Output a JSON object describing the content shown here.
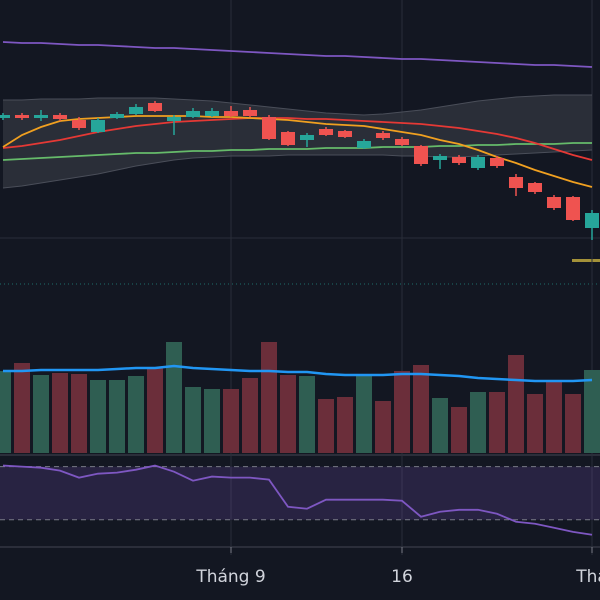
{
  "chart_data": {
    "type": "candlestick",
    "categories": [
      null,
      null,
      null,
      null,
      null,
      null,
      null,
      null,
      null,
      null,
      null,
      null,
      "Tháng 9",
      null,
      null,
      null,
      null,
      null,
      null,
      null,
      null,
      "16",
      null,
      null,
      null,
      null,
      null,
      null,
      null,
      null,
      null,
      "Thá"
    ],
    "open": [
      182,
      185,
      182,
      185,
      180,
      168,
      182,
      186,
      197,
      179,
      183,
      184,
      189,
      190,
      183,
      168,
      160,
      171,
      169,
      152,
      167,
      161,
      154,
      140,
      143,
      132,
      142,
      123,
      117,
      103,
      103,
      72
    ],
    "high": [
      187,
      187,
      190,
      187,
      183,
      182,
      188,
      196,
      199,
      185,
      192,
      192,
      194,
      193,
      185,
      169,
      167,
      173,
      170,
      161,
      169,
      163,
      155,
      146,
      145,
      145,
      144,
      126,
      118,
      105,
      104,
      90
    ],
    "low": [
      180,
      180,
      179,
      179,
      170,
      167,
      181,
      185,
      188,
      165,
      182,
      183,
      183,
      183,
      160,
      154,
      153,
      164,
      162,
      151,
      160,
      154,
      134,
      131,
      135,
      130,
      132,
      104,
      106,
      90,
      79,
      60
    ],
    "close": [
      185,
      182,
      185,
      181,
      172,
      180,
      186,
      193,
      189,
      183,
      189,
      189,
      184,
      184,
      161,
      155,
      165,
      165,
      163,
      159,
      162,
      155,
      136,
      144,
      137,
      143,
      134,
      112,
      108,
      92,
      80,
      87
    ],
    "up_color": "#26a69a",
    "down_color": "#ef5350",
    "ylim": [
      0,
      300
    ],
    "lines": [
      {
        "color": "#7e57c2",
        "values": [
          258,
          257,
          257,
          256,
          255,
          255,
          254,
          253,
          252,
          252,
          251,
          250,
          249,
          248,
          247,
          246,
          245,
          244,
          244,
          243,
          242,
          241,
          241,
          240,
          239,
          238,
          237,
          236,
          235,
          235,
          234,
          233
        ]
      },
      {
        "color": "#66bb6a",
        "values": [
          140,
          141,
          142,
          143,
          144,
          145,
          146,
          147,
          147,
          148,
          149,
          149,
          150,
          150,
          151,
          151,
          151,
          152,
          152,
          152,
          153,
          153,
          153,
          154,
          154,
          155,
          155,
          156,
          156,
          156,
          157,
          157
        ]
      },
      {
        "color": "#e53935",
        "values": [
          152,
          154,
          157,
          160,
          164,
          168,
          171,
          174,
          176,
          178,
          179,
          180,
          181,
          182,
          182,
          182,
          181,
          181,
          180,
          179,
          178,
          177,
          176,
          174,
          172,
          169,
          166,
          162,
          157,
          151,
          145,
          140
        ]
      },
      {
        "color": "#f0a020",
        "values": [
          153,
          165,
          173,
          179,
          181,
          182,
          183,
          184,
          184,
          184,
          184,
          183,
          183,
          182,
          181,
          180,
          178,
          176,
          175,
          174,
          171,
          168,
          165,
          160,
          156,
          150,
          143,
          137,
          130,
          124,
          118,
          113
        ]
      }
    ],
    "bands": {
      "color": "#3a3d47",
      "upper": [
        200,
        200,
        201,
        201,
        201,
        202,
        202,
        202,
        202,
        201,
        200,
        199,
        197,
        195,
        193,
        191,
        189,
        187,
        186,
        185,
        186,
        188,
        190,
        193,
        196,
        199,
        201,
        203,
        204,
        205,
        205,
        205
      ],
      "lower": [
        112,
        114,
        117,
        120,
        123,
        126,
        130,
        134,
        137,
        140,
        142,
        143,
        144,
        144,
        144,
        145,
        145,
        145,
        145,
        145,
        145,
        144,
        144,
        143,
        143,
        144,
        145,
        146,
        147,
        148,
        149,
        150
      ]
    },
    "volume": {
      "values": [
        82,
        90,
        78,
        80,
        79,
        73,
        73,
        77,
        85,
        111,
        66,
        64,
        64,
        75,
        111,
        78,
        77,
        54,
        56,
        77,
        52,
        82,
        88,
        55,
        46,
        61,
        61,
        98,
        59,
        73,
        59,
        83
      ],
      "ylim": [
        0,
        130
      ],
      "up_color": "#2f5e52",
      "down_color": "#6b2e3a",
      "ma": {
        "color": "#2196f3",
        "values": [
          82,
          82,
          83,
          83,
          83,
          83,
          84,
          85,
          85,
          87,
          85,
          84,
          83,
          82,
          82,
          81,
          81,
          79,
          78,
          78,
          78,
          79,
          79,
          78,
          77,
          75,
          74,
          73,
          72,
          72,
          72,
          73
        ]
      }
    },
    "rsi": {
      "values": [
        70.8,
        70,
        69.2,
        67,
        61.7,
        64.7,
        65.5,
        67.7,
        70.8,
        66.2,
        59.4,
        62.5,
        61.7,
        61.7,
        60.2,
        39.8,
        38.3,
        45.1,
        45.1,
        45.1,
        45.1,
        44.3,
        32.3,
        36,
        37.5,
        37.5,
        34.5,
        28.5,
        27,
        24,
        20.9,
        18.7
      ],
      "ylim": [
        11,
        78
      ],
      "levels": [
        70,
        30
      ],
      "color": "#7e57c2",
      "band_color": "#7e57c2"
    }
  }
}
